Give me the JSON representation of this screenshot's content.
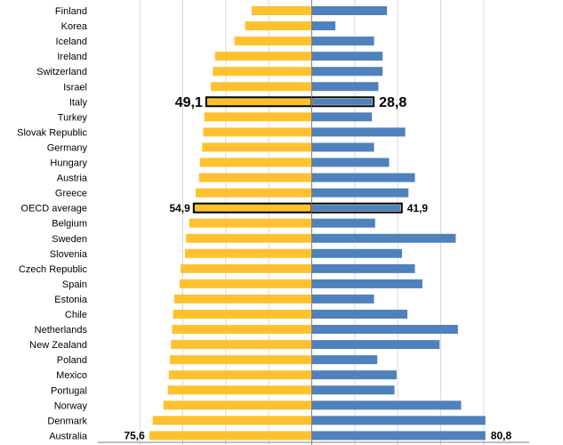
{
  "chart_data": {
    "type": "bar",
    "orientation": "horizontal",
    "layout": "back-to-back",
    "categories": [
      "Finland",
      "Korea",
      "Iceland",
      "Ireland",
      "Switzerland",
      "Israel",
      "Italy",
      "Turkey",
      "Slovak Republic",
      "Germany",
      "Hungary",
      "Austria",
      "Greece",
      "OECD average",
      "Belgium",
      "Sweden",
      "Slovenia",
      "Czech Republic",
      "Spain",
      "Estonia",
      "Chile",
      "Netherlands",
      "New Zealand",
      "Poland",
      "Mexico",
      "Portugal",
      "Norway",
      "Denmark",
      "Australia"
    ],
    "series": [
      {
        "side": "left",
        "color": "#FFC12F",
        "values": [
          28,
          31,
          36,
          45,
          46,
          47,
          49.1,
          50,
          50.5,
          51,
          52,
          52.5,
          54,
          54.9,
          57,
          58.5,
          59,
          61,
          61.5,
          64,
          64.5,
          65,
          65.5,
          66,
          66.5,
          67,
          69,
          74,
          75.6
        ]
      },
      {
        "side": "right",
        "color": "#4F81BD",
        "values": [
          35,
          11,
          29,
          33,
          33,
          31,
          28.8,
          28,
          43.5,
          29,
          36,
          48,
          45,
          41.9,
          29.5,
          67,
          42,
          48,
          51.5,
          29,
          44.5,
          68,
          59.5,
          30.5,
          39.5,
          38.5,
          69.5,
          80.8,
          80.8
        ]
      }
    ],
    "highlighted": [
      {
        "category": "Italy",
        "left_label": "49,1",
        "right_label": "28,8"
      },
      {
        "category": "OECD average",
        "left_label": "54,9",
        "right_label": "41,9"
      }
    ],
    "end_labels": {
      "category": "Australia",
      "left_label": "75,6",
      "right_label": "80,8"
    },
    "x_range_each_side": [
      0,
      80
    ],
    "grid": true,
    "colors": {
      "left_bar": "#FFC12F",
      "right_bar": "#4F81BD",
      "highlight_outline": "#000000",
      "grid": "#D9D9D9"
    }
  }
}
